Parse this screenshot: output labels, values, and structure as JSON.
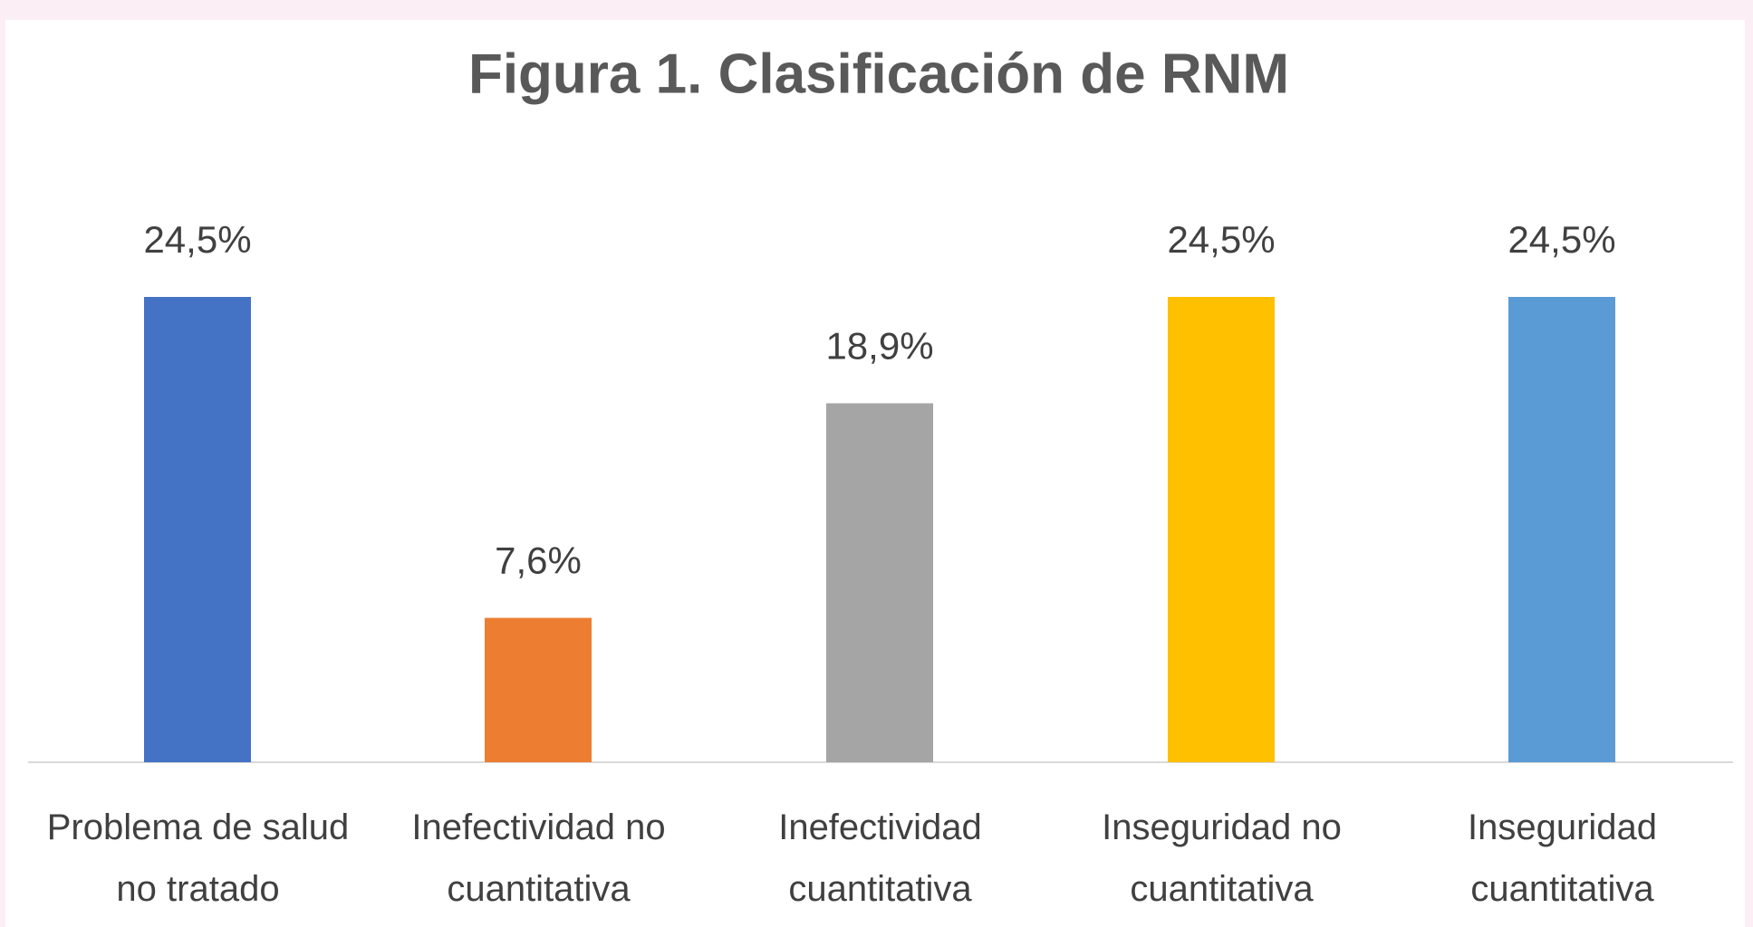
{
  "chart_data": {
    "type": "bar",
    "title": "Figura 1. Clasificación de RNM",
    "categories": [
      "Problema de salud no tratado",
      "Inefectividad no cuantitativa",
      "Inefectividad cuantitativa",
      "Inseguridad no cuantitativa",
      "Inseguridad cuantitativa"
    ],
    "values": [
      24.5,
      7.6,
      18.9,
      24.5,
      24.5
    ],
    "value_labels": [
      "24,5%",
      "7,6%",
      "18,9%",
      "24,5%",
      "24,5%"
    ],
    "colors": [
      "#4472c4",
      "#ed7d31",
      "#a5a5a5",
      "#ffc000",
      "#5b9bd5"
    ]
  }
}
